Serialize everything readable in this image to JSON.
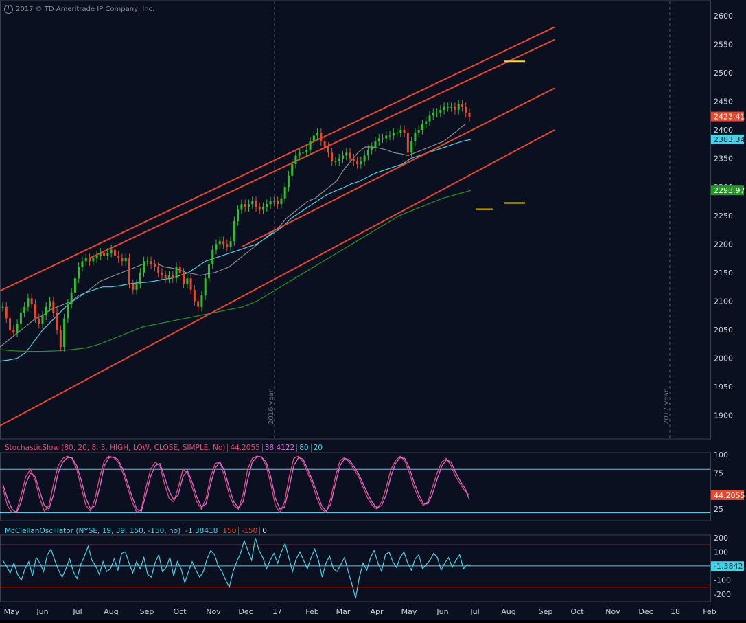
{
  "copyright": "2017 © TD Ameritrade IP Company, Inc.",
  "chart_data": [
    {
      "type": "candlestick",
      "symbol_panel": "price",
      "ylim": [
        1860,
        2625
      ],
      "y_ticks": [
        1900,
        1950,
        2000,
        2050,
        2100,
        2150,
        2200,
        2250,
        2300,
        2350,
        2400,
        2450,
        2500,
        2550,
        2600
      ],
      "x_ticks": [
        "May",
        "Jun",
        "Jul",
        "Aug",
        "Sep",
        "Oct",
        "Nov",
        "Dec",
        "17",
        "Feb",
        "Mar",
        "Apr",
        "May",
        "Jun",
        "Jul",
        "Aug",
        "Sep",
        "Oct",
        "Nov",
        "Dec",
        "18",
        "Feb"
      ],
      "year_markers": [
        "2016 year",
        "2017 year"
      ],
      "price_badges": [
        {
          "value": "2423.41",
          "color": "#e8472a"
        },
        {
          "value": "2383.34",
          "color": "#44d4e8"
        },
        {
          "value": "2293.97",
          "color": "#1f9a1f"
        }
      ],
      "close_series": [
        2090,
        2070,
        2050,
        2045,
        2060,
        2080,
        2090,
        2105,
        2095,
        2070,
        2060,
        2075,
        2090,
        2100,
        2080,
        2050,
        2020,
        2070,
        2095,
        2115,
        2140,
        2160,
        2170,
        2175,
        2170,
        2175,
        2180,
        2185,
        2180,
        2185,
        2190,
        2180,
        2175,
        2170,
        2175,
        2130,
        2120,
        2130,
        2150,
        2170,
        2170,
        2165,
        2160,
        2150,
        2145,
        2140,
        2145,
        2140,
        2160,
        2150,
        2130,
        2140,
        2120,
        2100,
        2090,
        2110,
        2140,
        2165,
        2190,
        2200,
        2205,
        2200,
        2195,
        2205,
        2240,
        2260,
        2270,
        2265,
        2270,
        2275,
        2265,
        2260,
        2265,
        2270,
        2275,
        2275,
        2270,
        2280,
        2300,
        2320,
        2340,
        2355,
        2360,
        2360,
        2365,
        2380,
        2390,
        2395,
        2380,
        2370,
        2360,
        2345,
        2345,
        2350,
        2355,
        2360,
        2350,
        2345,
        2340,
        2345,
        2355,
        2365,
        2370,
        2380,
        2385,
        2385,
        2390,
        2390,
        2395,
        2395,
        2400,
        2395,
        2360,
        2380,
        2395,
        2400,
        2410,
        2415,
        2425,
        2430,
        2430,
        2435,
        2440,
        2440,
        2440,
        2435,
        2445,
        2440,
        2430,
        2423
      ],
      "series": [
        {
          "name": "",
          "color": "#8e8e8e",
          "points": [
            2020,
            2030,
            2040,
            2050,
            2060,
            2070,
            2075,
            2085,
            2090,
            2095,
            2100,
            2110,
            2115,
            2125,
            2135,
            2140,
            2145,
            2150,
            2155,
            2160,
            2165,
            2165,
            2165,
            2160,
            2158,
            2155,
            2150,
            2148,
            2145,
            2148,
            2150,
            2155,
            2160,
            2170,
            2180,
            2190,
            2200,
            2210,
            2220,
            2230,
            2245,
            2255,
            2265,
            2275,
            2280,
            2290,
            2300,
            2310,
            2330,
            2345,
            2360,
            2370,
            2370,
            2368,
            2365,
            2360,
            2358,
            2355,
            2360,
            2365,
            2370,
            2375,
            2380,
            2390,
            2400,
            2410
          ]
        },
        {
          "name": "",
          "color": "#44d4e8",
          "points": [
            1995,
            1997,
            2000,
            2010,
            2030,
            2050,
            2065,
            2080,
            2095,
            2105,
            2115,
            2120,
            2125,
            2125,
            2127,
            2130,
            2132,
            2133,
            2135,
            2138,
            2140,
            2145,
            2150,
            2160,
            2170,
            2175,
            2180,
            2185,
            2190,
            2195,
            2200,
            2210,
            2220,
            2230,
            2245,
            2255,
            2265,
            2275,
            2285,
            2292,
            2298,
            2305,
            2310,
            2318,
            2325,
            2330,
            2335,
            2340,
            2350,
            2355,
            2360,
            2365,
            2370,
            2375,
            2380,
            2383
          ]
        },
        {
          "name": "",
          "color": "#1f9a1f",
          "points": [
            2015,
            2013,
            2012,
            2012,
            2013,
            2015,
            2018,
            2025,
            2035,
            2045,
            2055,
            2060,
            2065,
            2070,
            2075,
            2080,
            2085,
            2090,
            2100,
            2115,
            2130,
            2145,
            2160,
            2175,
            2190,
            2205,
            2220,
            2235,
            2250,
            2260,
            2270,
            2280,
            2287,
            2294
          ]
        }
      ],
      "channel_lines": [
        {
          "from": [
            0,
            2118
          ],
          "to": [
            808,
            2580
          ],
          "color": "#e8472a"
        },
        {
          "from": [
            130,
            2175
          ],
          "to": [
            808,
            2558
          ],
          "color": "#e8472a"
        },
        {
          "from": [
            352,
            2195
          ],
          "to": [
            808,
            2473
          ],
          "color": "#e8472a"
        },
        {
          "from": [
            0,
            1882
          ],
          "to": [
            808,
            2400
          ],
          "color": "#e8472a"
        }
      ],
      "marker_lines": [
        {
          "x": [
            735,
            765
          ],
          "y": 2520
        },
        {
          "x": [
            693,
            718
          ],
          "y": 2261
        },
        {
          "x": [
            735,
            765
          ],
          "y": 2272
        }
      ]
    },
    {
      "type": "line",
      "title": "StochasticSlow (80, 20, 8, 3, HIGH, LOW, CLOSE, SIMPLE, No)",
      "values_display": [
        "44.2055",
        "38.4122",
        "80",
        "20"
      ],
      "ylim": [
        10,
        102
      ],
      "y_ticks": [
        100,
        75,
        25
      ],
      "levels": [
        80,
        20
      ],
      "badge": "44.2055",
      "series": [
        {
          "name": "",
          "color": "#e84a6a",
          "values": [
            55,
            30,
            20,
            22,
            45,
            70,
            80,
            65,
            40,
            22,
            30,
            60,
            85,
            95,
            98,
            95,
            80,
            55,
            30,
            22,
            40,
            70,
            92,
            98,
            96,
            90,
            75,
            55,
            35,
            20,
            25,
            55,
            80,
            90,
            85,
            60,
            40,
            35,
            55,
            80,
            75,
            55,
            35,
            25,
            40,
            70,
            88,
            90,
            70,
            45,
            30,
            25,
            45,
            80,
            95,
            98,
            97,
            85,
            60,
            30,
            20,
            35,
            70,
            95,
            98,
            90,
            75,
            60,
            40,
            25,
            20,
            40,
            70,
            92,
            96,
            90,
            80,
            70,
            55,
            40,
            30,
            25,
            35,
            55,
            80,
            92,
            98,
            92,
            75,
            55,
            40,
            30,
            35,
            55,
            75,
            90,
            95,
            85,
            70,
            60,
            50,
            44
          ]
        },
        {
          "name": "",
          "color": "#d070e0",
          "values": [
            60,
            40,
            25,
            20,
            35,
            60,
            75,
            70,
            50,
            30,
            25,
            45,
            75,
            90,
            96,
            96,
            85,
            65,
            40,
            25,
            30,
            55,
            85,
            96,
            97,
            93,
            80,
            62,
            42,
            25,
            22,
            45,
            70,
            85,
            88,
            70,
            50,
            38,
            45,
            70,
            78,
            62,
            42,
            28,
            32,
            60,
            82,
            90,
            78,
            55,
            35,
            27,
            35,
            65,
            90,
            97,
            97,
            90,
            70,
            40,
            25,
            28,
            55,
            85,
            96,
            94,
            80,
            65,
            48,
            30,
            22,
            32,
            60,
            85,
            95,
            93,
            84,
            74,
            60,
            46,
            34,
            27,
            30,
            45,
            70,
            88,
            96,
            95,
            82,
            62,
            46,
            33,
            32,
            46,
            66,
            84,
            93,
            90,
            76,
            64,
            54,
            38
          ]
        }
      ]
    },
    {
      "type": "line",
      "title": "McClellanOscillator (NYSE, 19, 39, 150, -150, no)",
      "values_display": [
        "-1.38418",
        "150",
        "-150",
        "0"
      ],
      "ylim": [
        -250,
        215
      ],
      "y_ticks": [
        200,
        100,
        -100,
        -200
      ],
      "levels": [
        150,
        0,
        -150
      ],
      "badge": "-1.3842",
      "series": [
        {
          "name": "",
          "color": "#44d4e8",
          "values": [
            40,
            0,
            -50,
            20,
            -60,
            -100,
            -20,
            30,
            -70,
            60,
            20,
            -40,
            80,
            120,
            40,
            -30,
            -80,
            -20,
            50,
            -40,
            -90,
            10,
            70,
            140,
            40,
            0,
            -60,
            30,
            -40,
            -20,
            50,
            -30,
            90,
            100,
            20,
            -50,
            30,
            -20,
            60,
            -60,
            -80,
            20,
            80,
            -40,
            -10,
            60,
            -70,
            30,
            -20,
            -120,
            -40,
            30,
            -30,
            -80,
            -40,
            50,
            110,
            80,
            0,
            -40,
            -100,
            -150,
            -40,
            30,
            90,
            180,
            110,
            40,
            200,
            110,
            60,
            -20,
            40,
            90,
            20,
            100,
            160,
            60,
            -40,
            50,
            100,
            40,
            -20,
            60,
            120,
            40,
            -80,
            20,
            70,
            -20,
            -40,
            10,
            60,
            -40,
            -130,
            -230,
            -80,
            20,
            -30,
            60,
            110,
            20,
            -40,
            80,
            100,
            30,
            -10,
            60,
            100,
            20,
            -30,
            50,
            80,
            -20,
            10,
            40,
            90,
            60,
            -30,
            20,
            60,
            -10,
            40,
            80,
            -20,
            10,
            -1
          ]
        }
      ]
    }
  ]
}
